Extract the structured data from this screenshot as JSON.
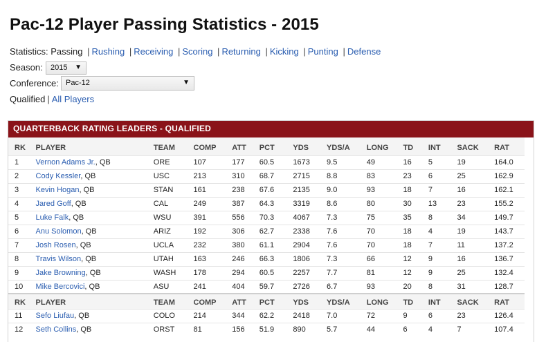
{
  "page_title": "Pac-12 Player Passing Statistics - 2015",
  "stats_nav": {
    "label": "Statistics:",
    "current": "Passing",
    "links": [
      "Rushing",
      "Receiving",
      "Scoring",
      "Returning",
      "Kicking",
      "Punting",
      "Defense"
    ],
    "separator": "|"
  },
  "season": {
    "label": "Season:",
    "value": "2015"
  },
  "conference": {
    "label": "Conference:",
    "value": "Pac-12"
  },
  "qualified": {
    "current": "Qualified",
    "link": "All Players",
    "separator": "|"
  },
  "panel_title": "QUARTERBACK RATING LEADERS - QUALIFIED",
  "columns": [
    "RK",
    "PLAYER",
    "TEAM",
    "COMP",
    "ATT",
    "PCT",
    "YDS",
    "YDS/A",
    "LONG",
    "TD",
    "INT",
    "SACK",
    "RAT"
  ],
  "rows": [
    {
      "rk": "1",
      "player": "Vernon Adams Jr.",
      "pos": ", QB",
      "team": "ORE",
      "comp": "107",
      "att": "177",
      "pct": "60.5",
      "yds": "1673",
      "ydsa": "9.5",
      "long": "49",
      "td": "16",
      "int": "5",
      "sack": "19",
      "rat": "164.0"
    },
    {
      "rk": "2",
      "player": "Cody Kessler",
      "pos": ", QB",
      "team": "USC",
      "comp": "213",
      "att": "310",
      "pct": "68.7",
      "yds": "2715",
      "ydsa": "8.8",
      "long": "83",
      "td": "23",
      "int": "6",
      "sack": "25",
      "rat": "162.9"
    },
    {
      "rk": "3",
      "player": "Kevin Hogan",
      "pos": ", QB",
      "team": "STAN",
      "comp": "161",
      "att": "238",
      "pct": "67.6",
      "yds": "2135",
      "ydsa": "9.0",
      "long": "93",
      "td": "18",
      "int": "7",
      "sack": "16",
      "rat": "162.1"
    },
    {
      "rk": "4",
      "player": "Jared Goff",
      "pos": ", QB",
      "team": "CAL",
      "comp": "249",
      "att": "387",
      "pct": "64.3",
      "yds": "3319",
      "ydsa": "8.6",
      "long": "80",
      "td": "30",
      "int": "13",
      "sack": "23",
      "rat": "155.2"
    },
    {
      "rk": "5",
      "player": "Luke Falk",
      "pos": ", QB",
      "team": "WSU",
      "comp": "391",
      "att": "556",
      "pct": "70.3",
      "yds": "4067",
      "ydsa": "7.3",
      "long": "75",
      "td": "35",
      "int": "8",
      "sack": "34",
      "rat": "149.7"
    },
    {
      "rk": "6",
      "player": "Anu Solomon",
      "pos": ", QB",
      "team": "ARIZ",
      "comp": "192",
      "att": "306",
      "pct": "62.7",
      "yds": "2338",
      "ydsa": "7.6",
      "long": "70",
      "td": "18",
      "int": "4",
      "sack": "19",
      "rat": "143.7"
    },
    {
      "rk": "7",
      "player": "Josh Rosen",
      "pos": ", QB",
      "team": "UCLA",
      "comp": "232",
      "att": "380",
      "pct": "61.1",
      "yds": "2904",
      "ydsa": "7.6",
      "long": "70",
      "td": "18",
      "int": "7",
      "sack": "11",
      "rat": "137.2"
    },
    {
      "rk": "8",
      "player": "Travis Wilson",
      "pos": ", QB",
      "team": "UTAH",
      "comp": "163",
      "att": "246",
      "pct": "66.3",
      "yds": "1806",
      "ydsa": "7.3",
      "long": "66",
      "td": "12",
      "int": "9",
      "sack": "16",
      "rat": "136.7"
    },
    {
      "rk": "9",
      "player": "Jake Browning",
      "pos": ", QB",
      "team": "WASH",
      "comp": "178",
      "att": "294",
      "pct": "60.5",
      "yds": "2257",
      "ydsa": "7.7",
      "long": "81",
      "td": "12",
      "int": "9",
      "sack": "25",
      "rat": "132.4"
    },
    {
      "rk": "10",
      "player": "Mike Bercovici",
      "pos": ", QB",
      "team": "ASU",
      "comp": "241",
      "att": "404",
      "pct": "59.7",
      "yds": "2726",
      "ydsa": "6.7",
      "long": "93",
      "td": "20",
      "int": "8",
      "sack": "31",
      "rat": "128.7"
    },
    {
      "rk": "11",
      "player": "Sefo Liufau",
      "pos": ", QB",
      "team": "COLO",
      "comp": "214",
      "att": "344",
      "pct": "62.2",
      "yds": "2418",
      "ydsa": "7.0",
      "long": "72",
      "td": "9",
      "int": "6",
      "sack": "23",
      "rat": "126.4"
    },
    {
      "rk": "12",
      "player": "Seth Collins",
      "pos": ", QB",
      "team": "ORST",
      "comp": "81",
      "att": "156",
      "pct": "51.9",
      "yds": "890",
      "ydsa": "5.7",
      "long": "44",
      "td": "6",
      "int": "4",
      "sack": "7",
      "rat": "107.4"
    }
  ],
  "colors": {
    "header_bg": "#8a1319",
    "link": "#2a5db0"
  }
}
